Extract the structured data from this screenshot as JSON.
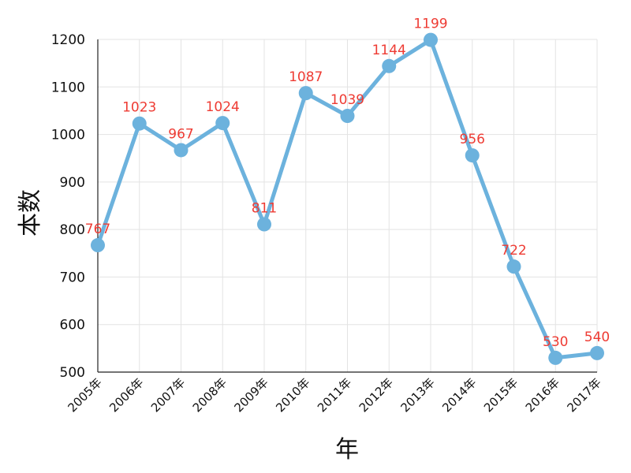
{
  "chart_data": {
    "type": "line",
    "title": "",
    "xlabel": "年",
    "ylabel": "本数",
    "categories": [
      "2005年",
      "2006年",
      "2007年",
      "2008年",
      "2009年",
      "2010年",
      "2011年",
      "2012年",
      "2013年",
      "2014年",
      "2015年",
      "2016年",
      "2017年"
    ],
    "series": [
      {
        "values": [
          767,
          1023,
          967,
          1024,
          811,
          1087,
          1039,
          1144,
          1199,
          956,
          722,
          530,
          540
        ],
        "color": "#6cb2dd"
      }
    ],
    "data_labels": [
      "767",
      "1023",
      "967",
      "1024",
      "811",
      "1087",
      "1039",
      "1144",
      "1199",
      "956",
      "722",
      "530",
      "540"
    ],
    "data_label_color": "#ee3b33",
    "ylim": [
      500,
      1200
    ],
    "yticks": [
      500,
      600,
      700,
      800,
      900,
      1000,
      1100,
      1200
    ],
    "ytick_labels": [
      "500",
      "600",
      "700",
      "800",
      "900",
      "1000",
      "1100",
      "1200"
    ],
    "grid": true,
    "legend": "none"
  }
}
